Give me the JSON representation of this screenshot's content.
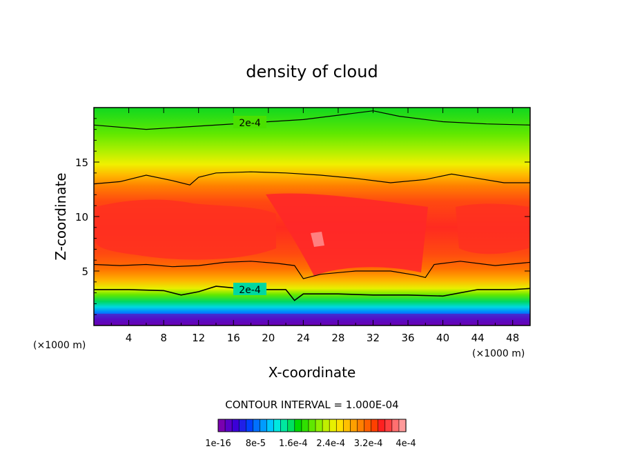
{
  "chart_data": {
    "type": "heatmap",
    "title": "density of cloud",
    "xlabel": "X-coordinate",
    "ylabel": "Z-coordinate",
    "x_unit_left": "(×1000 m)",
    "x_unit_right": "(×1000 m)",
    "xlim": [
      0,
      50
    ],
    "ylim": [
      0,
      20
    ],
    "x_ticks": [
      4,
      8,
      12,
      16,
      20,
      24,
      28,
      32,
      36,
      40,
      44,
      48
    ],
    "x_tick_labels": [
      "4",
      "8",
      "12",
      "16",
      "20",
      "24",
      "28",
      "32",
      "36",
      "40",
      "44",
      "48"
    ],
    "y_ticks": [
      5,
      10,
      15
    ],
    "y_tick_labels": [
      "5",
      "10",
      "15"
    ],
    "contour_interval_text": "CONTOUR INTERVAL = 1.000E-04",
    "contour_labels": [
      "2e-4",
      "2e-4"
    ],
    "colorbar_labels": [
      "1e-16",
      "8e-5",
      "1.6e-4",
      "2.4e-4",
      "3.2e-4",
      "4e-4"
    ],
    "colorbar_colors": [
      "#7a00b0",
      "#5a00c8",
      "#3c00d8",
      "#2020e8",
      "#0040ff",
      "#0070ff",
      "#009cff",
      "#00c8ff",
      "#00e8e0",
      "#00e8a0",
      "#00e060",
      "#00d800",
      "#30e000",
      "#60e800",
      "#90f000",
      "#c0f000",
      "#e8f000",
      "#ffe000",
      "#ffc000",
      "#ffa000",
      "#ff8000",
      "#ff6000",
      "#ff4000",
      "#ff2020",
      "#ff4040",
      "#ff7070",
      "#ff9a9a"
    ],
    "series": [
      {
        "name": "2e-4 upper contour",
        "x": [
          0,
          6,
          12,
          18,
          24,
          29,
          32,
          35,
          40,
          45,
          50
        ],
        "y": [
          18.4,
          18.0,
          18.3,
          18.6,
          18.9,
          19.4,
          19.7,
          19.2,
          18.7,
          18.5,
          18.4
        ]
      },
      {
        "name": "cloud top contour",
        "x": [
          0,
          3,
          6,
          9,
          11,
          12,
          14,
          18,
          22,
          26,
          30,
          34,
          38,
          41,
          44,
          47,
          50
        ],
        "y": [
          13.0,
          13.2,
          13.8,
          13.3,
          12.9,
          13.6,
          14.0,
          14.1,
          14.0,
          13.8,
          13.5,
          13.1,
          13.4,
          13.9,
          13.5,
          13.1,
          13.1
        ]
      },
      {
        "name": "cloud base contour",
        "x": [
          0,
          3,
          6,
          9,
          12,
          15,
          18,
          21,
          23,
          24,
          26,
          30,
          34,
          37,
          38,
          39,
          42,
          46,
          50
        ],
        "y": [
          5.6,
          5.5,
          5.6,
          5.4,
          5.5,
          5.8,
          5.9,
          5.7,
          5.5,
          4.3,
          4.7,
          5.0,
          5.0,
          4.6,
          4.4,
          5.6,
          5.9,
          5.5,
          5.8
        ]
      },
      {
        "name": "2e-4 lower contour",
        "x": [
          0,
          4,
          8,
          10,
          12,
          14,
          18,
          22,
          23,
          24,
          28,
          32,
          36,
          40,
          44,
          48,
          50
        ],
        "y": [
          3.3,
          3.3,
          3.2,
          2.8,
          3.1,
          3.6,
          3.3,
          3.3,
          2.3,
          2.9,
          2.9,
          2.8,
          2.8,
          2.7,
          3.3,
          3.3,
          3.4
        ]
      }
    ]
  }
}
